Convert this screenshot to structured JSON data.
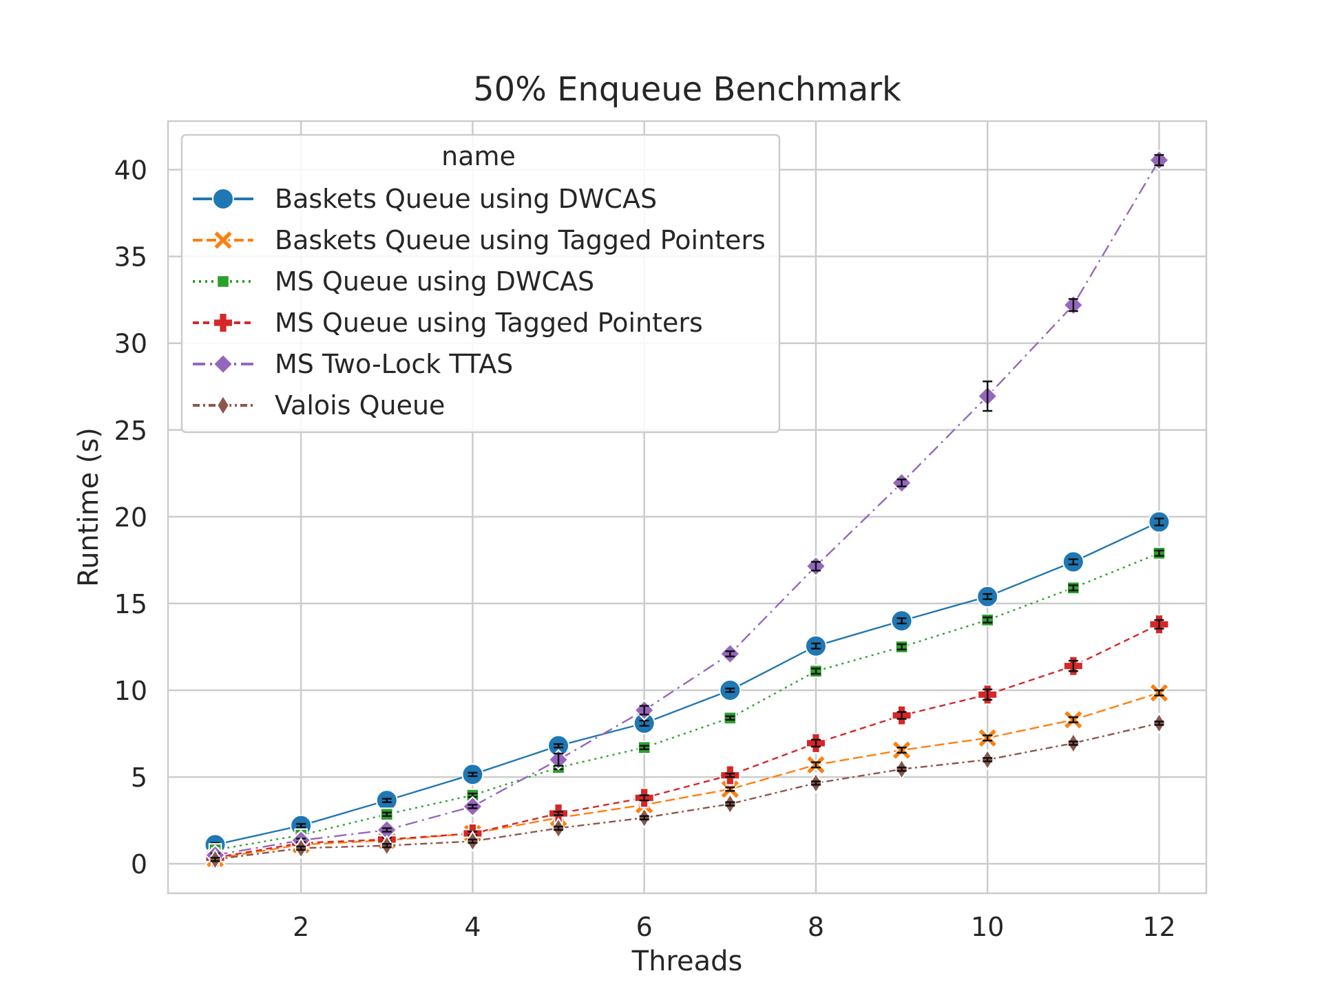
{
  "chart_data": {
    "type": "line",
    "title": "50% Enqueue Benchmark",
    "xlabel": "Threads",
    "ylabel": "Runtime (s)",
    "xlim": [
      0.45,
      12.55
    ],
    "ylim": [
      -1.7,
      42.8
    ],
    "xticks": [
      2,
      4,
      6,
      8,
      10,
      12
    ],
    "yticks": [
      0,
      5,
      10,
      15,
      20,
      25,
      30,
      35,
      40
    ],
    "grid": true,
    "legend": {
      "title": "name",
      "placement": "upper-left"
    },
    "x": [
      1,
      2,
      3,
      4,
      5,
      6,
      7,
      8,
      9,
      10,
      11,
      12
    ],
    "series": [
      {
        "name": "Baskets Queue using DWCAS",
        "color": "#1f77b4",
        "marker": "circle",
        "dash": "solid",
        "values": [
          1.1,
          2.2,
          3.65,
          5.15,
          6.8,
          8.1,
          10.0,
          12.55,
          14.0,
          15.4,
          17.4,
          19.7
        ],
        "err": [
          0.1,
          0.1,
          0.1,
          0.1,
          0.1,
          0.15,
          0.1,
          0.15,
          0.15,
          0.15,
          0.15,
          0.2
        ]
      },
      {
        "name": "Baskets Queue using Tagged Pointers",
        "color": "#ff7f0e",
        "marker": "x-filled",
        "dash": "dashed",
        "values": [
          0.3,
          1.1,
          1.35,
          1.75,
          2.65,
          3.4,
          4.3,
          5.7,
          6.55,
          7.25,
          8.3,
          9.85
        ],
        "err": [
          0.1,
          0.1,
          0.1,
          0.1,
          0.1,
          0.1,
          0.1,
          0.15,
          0.15,
          0.15,
          0.15,
          0.15
        ]
      },
      {
        "name": "MS Queue using DWCAS",
        "color": "#2ca02c",
        "marker": "square",
        "dash": "dotted",
        "values": [
          0.8,
          1.65,
          2.85,
          3.95,
          5.55,
          6.7,
          8.4,
          11.1,
          12.5,
          14.05,
          15.9,
          17.9
        ],
        "err": [
          0.1,
          0.1,
          0.1,
          0.1,
          0.1,
          0.1,
          0.1,
          0.15,
          0.15,
          0.15,
          0.15,
          0.15
        ]
      },
      {
        "name": "MS Queue using Tagged Pointers",
        "color": "#d62728",
        "marker": "plus-filled",
        "dash": "dashed-short",
        "values": [
          0.35,
          1.2,
          1.4,
          1.75,
          2.9,
          3.8,
          5.1,
          6.95,
          8.55,
          9.75,
          11.4,
          13.8
        ],
        "err": [
          0.1,
          0.1,
          0.1,
          0.1,
          0.1,
          0.15,
          0.1,
          0.2,
          0.2,
          0.3,
          0.3,
          0.25
        ]
      },
      {
        "name": "MS Two-Lock TTAS",
        "color": "#9467bd",
        "marker": "diamond",
        "dash": "dashdot",
        "values": [
          0.5,
          1.35,
          1.95,
          3.3,
          6.0,
          8.85,
          12.1,
          17.15,
          21.95,
          26.95,
          32.2,
          40.55
        ],
        "err": [
          0.1,
          0.1,
          0.1,
          0.1,
          0.35,
          0.25,
          0.15,
          0.25,
          0.2,
          0.85,
          0.35,
          0.3
        ]
      },
      {
        "name": "Valois Queue",
        "color": "#8c564b",
        "marker": "thin-diamond",
        "dash": "dashdot-dense",
        "values": [
          0.25,
          0.9,
          1.05,
          1.3,
          2.05,
          2.65,
          3.45,
          4.65,
          5.45,
          6.0,
          6.95,
          8.1
        ],
        "err": [
          0.1,
          0.1,
          0.1,
          0.1,
          0.1,
          0.1,
          0.1,
          0.1,
          0.1,
          0.1,
          0.1,
          0.1
        ]
      }
    ]
  }
}
